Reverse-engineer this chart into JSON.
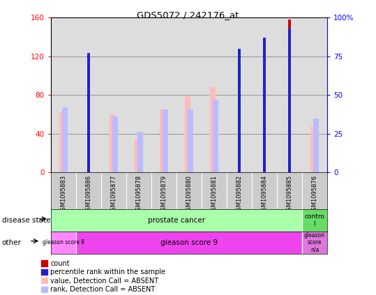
{
  "title": "GDS5072 / 242176_at",
  "samples": [
    "GSM1095883",
    "GSM1095886",
    "GSM1095877",
    "GSM1095878",
    "GSM1095879",
    "GSM1095880",
    "GSM1095881",
    "GSM1095882",
    "GSM1095884",
    "GSM1095885",
    "GSM1095876"
  ],
  "count_values": [
    null,
    80,
    null,
    null,
    null,
    null,
    null,
    105,
    126,
    158,
    null
  ],
  "percentile_values": [
    null,
    77,
    null,
    null,
    null,
    null,
    null,
    80,
    87,
    93,
    null
  ],
  "value_absent": [
    62,
    null,
    60,
    35,
    65,
    79,
    88,
    null,
    null,
    null,
    48
  ],
  "rank_absent": [
    67,
    null,
    58,
    42,
    65,
    65,
    75,
    null,
    null,
    null,
    56
  ],
  "ylim_left": [
    0,
    160
  ],
  "ylim_right": [
    0,
    100
  ],
  "yticks_left": [
    0,
    40,
    80,
    120,
    160
  ],
  "yticks_right": [
    0,
    25,
    50,
    75,
    100
  ],
  "colors": {
    "count": "#cc0000",
    "percentile": "#2222cc",
    "value_absent": "#ffbbbb",
    "rank_absent": "#bbbbff",
    "prostate_cancer_bg": "#aaffaa",
    "control_bg": "#66dd66",
    "gleason8_bg": "#ff88ff",
    "gleason9_bg": "#ee44ee",
    "gleason_na_bg": "#dd77dd",
    "plot_bg": "#dddddd"
  }
}
